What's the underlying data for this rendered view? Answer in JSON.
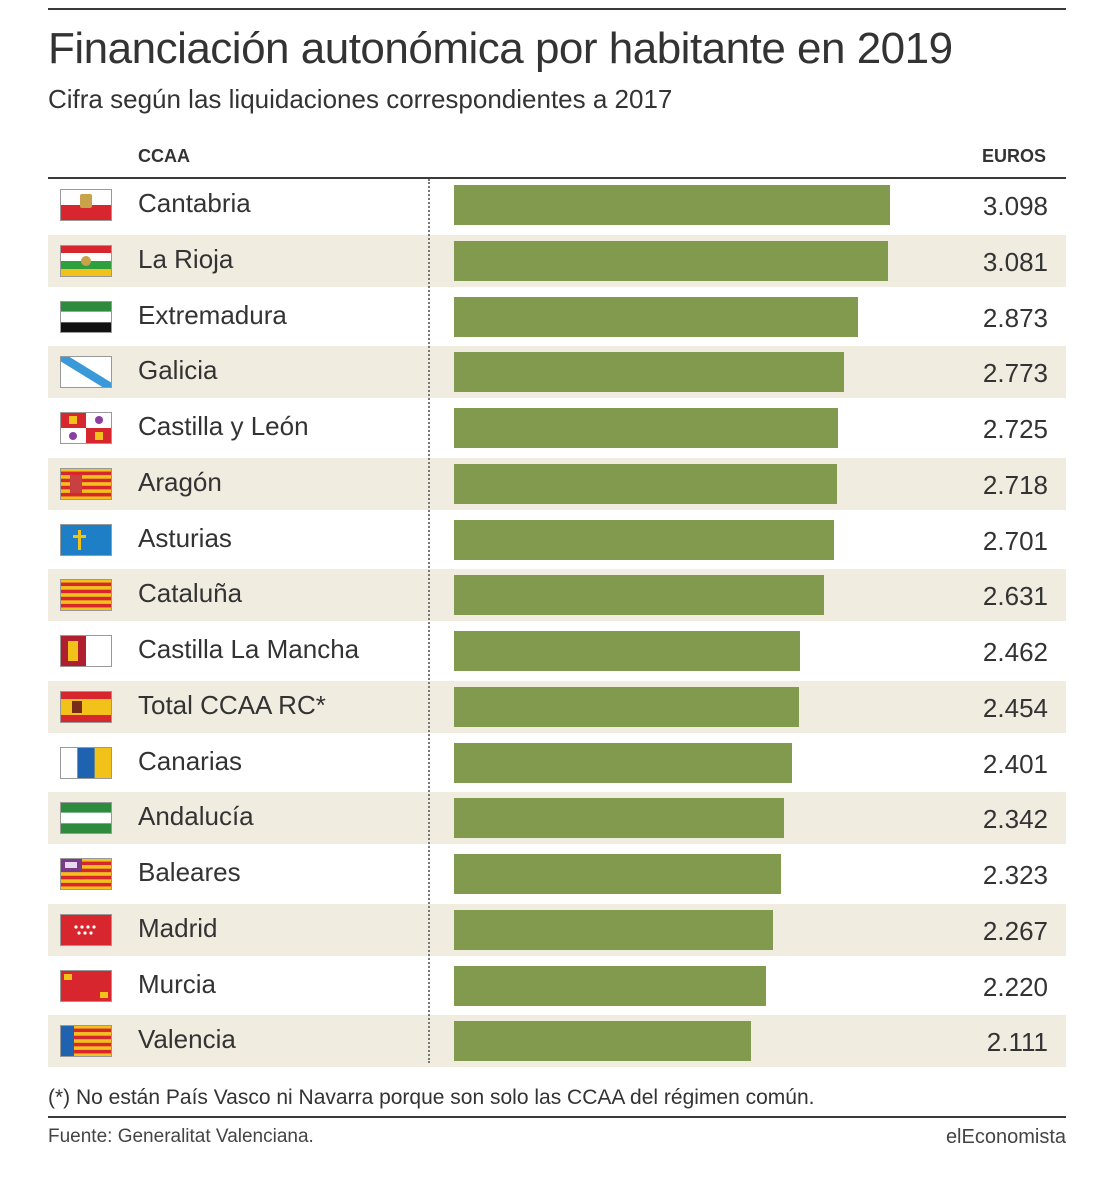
{
  "header": {
    "title": "Financiación autonómica por habitante en 2019",
    "subtitle": "Cifra según las liquidaciones correspondientes a 2017"
  },
  "columns": {
    "region": "CCAA",
    "value": "EUROS"
  },
  "chart_data": {
    "type": "bar",
    "orientation": "horizontal",
    "title": "Financiación autonómica por habitante en 2019",
    "subtitle": "Cifra según las liquidaciones correspondientes a 2017",
    "xlabel": "",
    "ylabel": "",
    "unit": "EUROS",
    "xlim": [
      0,
      3098
    ],
    "categories": [
      "Cantabria",
      "La Rioja",
      "Extremadura",
      "Galicia",
      "Castilla y León",
      "Aragón",
      "Asturias",
      "Cataluña",
      "Castilla La Mancha",
      "Total CCAA RC*",
      "Canarias",
      "Andalucía",
      "Baleares",
      "Madrid",
      "Murcia",
      "Valencia"
    ],
    "values": [
      3098,
      3081,
      2873,
      2773,
      2725,
      2718,
      2701,
      2631,
      2462,
      2454,
      2401,
      2342,
      2323,
      2267,
      2220,
      2111
    ],
    "value_labels": [
      "3.098",
      "3.081",
      "2.873",
      "2.773",
      "2.725",
      "2.718",
      "2.701",
      "2.631",
      "2.462",
      "2.454",
      "2.401",
      "2.342",
      "2.323",
      "2.267",
      "2.220",
      "2.111"
    ],
    "flag_icons": [
      "cantabria-flag-icon",
      "la-rioja-flag-icon",
      "extremadura-flag-icon",
      "galicia-flag-icon",
      "castilla-y-leon-flag-icon",
      "aragon-flag-icon",
      "asturias-flag-icon",
      "cataluna-flag-icon",
      "castilla-la-mancha-flag-icon",
      "spain-flag-icon",
      "canarias-flag-icon",
      "andalucia-flag-icon",
      "baleares-flag-icon",
      "madrid-flag-icon",
      "murcia-flag-icon",
      "valencia-flag-icon"
    ],
    "bar_color": "#829a4d",
    "row_shading_color": "#f0ece0",
    "grid": false
  },
  "footer": {
    "footnote": "(*) No están País Vasco ni Navarra porque son solo las CCAA del régimen común.",
    "source": "Fuente: Generalitat Valenciana.",
    "brand": "elEconomista"
  }
}
